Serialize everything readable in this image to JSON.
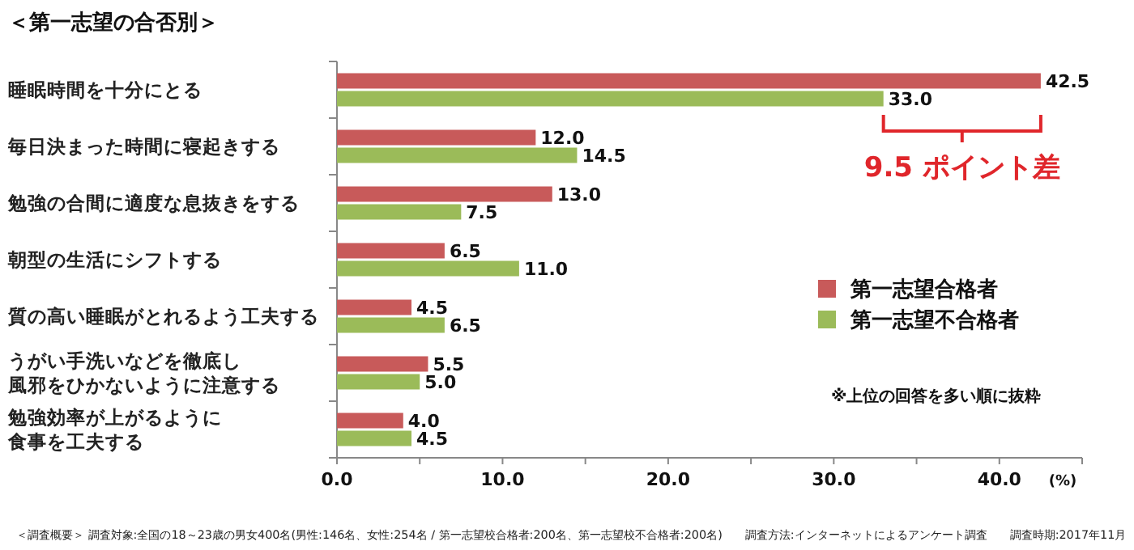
{
  "chart_data": {
    "type": "bar",
    "orientation": "horizontal",
    "title": "＜第一志望の合否別＞",
    "categories": [
      "睡眠時間を十分にとる",
      "毎日決まった時間に寝起きする",
      "勉強の合間に適度な息抜きをする",
      "朝型の生活にシフトする",
      "質の高い睡眠がとれるよう工夫する",
      "うがい手洗いなどを徹底し風邪をひかないように注意する",
      "勉強効率が上がるように食事を工夫する"
    ],
    "series": [
      {
        "name": "第一志望合格者",
        "color": "#c85a5a",
        "values": [
          42.5,
          12.0,
          13.0,
          6.5,
          4.5,
          5.5,
          4.0
        ],
        "value_labels": [
          "42.5",
          "12.0",
          "13.0",
          "6.5",
          "4.5",
          "5.5",
          "4.0"
        ]
      },
      {
        "name": "第一志望不合格者",
        "color": "#9bbb59",
        "values": [
          33.0,
          14.5,
          7.5,
          11.0,
          6.5,
          5.0,
          4.5
        ],
        "value_labels": [
          "33.0",
          "14.5",
          "7.5",
          "11.0",
          "6.5",
          "5.0",
          "4.5"
        ]
      }
    ],
    "xlim": [
      0,
      45
    ],
    "xticks": [
      {
        "value": 0,
        "label": "0.0"
      },
      {
        "value": 5,
        "label": null
      },
      {
        "value": 10,
        "label": "10.0"
      },
      {
        "value": 15,
        "label": null
      },
      {
        "value": 20,
        "label": "20.0"
      },
      {
        "value": 25,
        "label": null
      },
      {
        "value": 30,
        "label": "30.0"
      },
      {
        "value": 35,
        "label": null
      },
      {
        "value": 40,
        "label": "40.0"
      },
      {
        "value": 45,
        "label": null
      }
    ],
    "xlabel": "(%)",
    "legend": "right",
    "grid": false,
    "annotations": [
      "9.5 ポイント差",
      "※上位の回答を多い順に抜粋",
      "＜調査概要＞ 調査対象:全国の18～23歳の男女400名(男性:146名、女性:254名 / 第一志望校合格者:200名、第一志望校不合格者:200名)",
      "調査方法:インターネットによるアンケート調査",
      "調査時期:2017年11月"
    ]
  }
}
